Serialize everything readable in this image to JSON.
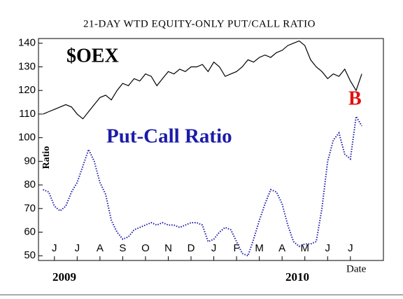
{
  "chart_data": {
    "type": "line",
    "title": "21-DAY WTD EQUITY-ONLY PUT/CALL RATIO",
    "y_label": "Ratio",
    "x_label": "Date",
    "annotations": [
      "$OEX",
      "Put-Call Ratio",
      "B",
      "2009",
      "2010"
    ],
    "x": [
      -0.5,
      -0.25,
      0,
      0.25,
      0.5,
      0.75,
      1,
      1.25,
      1.5,
      1.75,
      2,
      2.25,
      2.5,
      2.75,
      3,
      3.25,
      3.5,
      3.75,
      4,
      4.25,
      4.5,
      4.75,
      5,
      5.25,
      5.5,
      5.75,
      6,
      6.25,
      6.5,
      6.75,
      7,
      7.25,
      7.5,
      7.75,
      8,
      8.25,
      8.5,
      8.75,
      9,
      9.25,
      9.5,
      9.75,
      10,
      10.25,
      10.5,
      10.75,
      11,
      11.25,
      11.5,
      11.75,
      12,
      12.25,
      12.5,
      12.75,
      13,
      13.25,
      13.5
    ],
    "series": [
      {
        "name": "$OEX",
        "color": "#000000",
        "style": "solid",
        "values": [
          110,
          111,
          112,
          113,
          114,
          113,
          110,
          108,
          111,
          114,
          117,
          118,
          116,
          120,
          123,
          122,
          125,
          124,
          127,
          126,
          122,
          125,
          128,
          127,
          129,
          128,
          130,
          130,
          131,
          128,
          132,
          130,
          126,
          127,
          128,
          130,
          133,
          132,
          134,
          135,
          134,
          136,
          137,
          139,
          140,
          141,
          139,
          133,
          130,
          128,
          125,
          127,
          126,
          129,
          124,
          120,
          127
        ]
      },
      {
        "name": "Put-Call Ratio",
        "color": "#1c1ca8",
        "style": "dotted",
        "values": [
          78,
          77,
          71,
          69,
          71,
          77,
          81,
          88,
          95,
          90,
          81,
          76,
          65,
          60,
          57,
          58,
          61,
          62,
          63,
          64,
          63,
          64,
          63,
          63,
          62,
          63,
          64,
          64,
          63,
          56,
          57,
          60,
          62,
          61,
          56,
          51,
          50,
          57,
          65,
          72,
          78,
          77,
          72,
          63,
          56,
          54,
          55,
          55,
          56,
          70,
          90,
          99,
          102,
          93,
          91,
          109,
          105
        ]
      }
    ],
    "xlim": [
      -0.7,
      14.45
    ],
    "xticks": [
      {
        "value": 0,
        "label": "J"
      },
      {
        "value": 1,
        "label": "J"
      },
      {
        "value": 2,
        "label": "A"
      },
      {
        "value": 3,
        "label": "S"
      },
      {
        "value": 4,
        "label": "O"
      },
      {
        "value": 5,
        "label": "N"
      },
      {
        "value": 6,
        "label": "D"
      },
      {
        "value": 7,
        "label": "J"
      },
      {
        "value": 8,
        "label": "F"
      },
      {
        "value": 9,
        "label": "M"
      },
      {
        "value": 10,
        "label": "A"
      },
      {
        "value": 11,
        "label": "M"
      },
      {
        "value": 12,
        "label": "J"
      },
      {
        "value": 13,
        "label": "J"
      }
    ],
    "ylim": [
      48,
      142
    ],
    "yticks": [
      50,
      60,
      70,
      80,
      90,
      100,
      110,
      120,
      130,
      140
    ],
    "grid": false
  }
}
